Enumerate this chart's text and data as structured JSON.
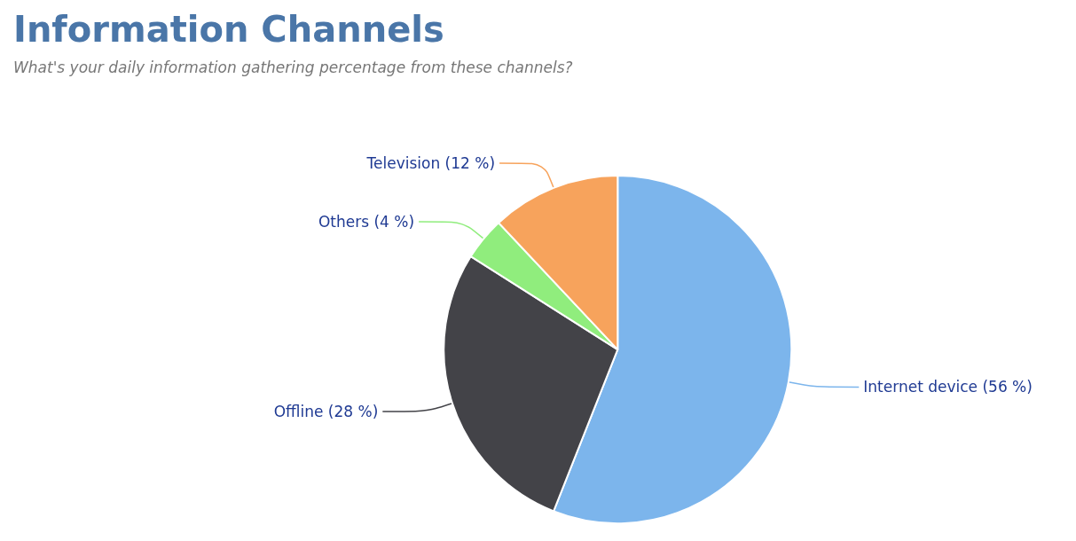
{
  "chart_data": {
    "type": "pie",
    "title": "Information Channels",
    "subtitle": "What's your daily information gathering percentage from these channels?",
    "categories": [
      "Internet device",
      "Offline",
      "Others",
      "Television"
    ],
    "values": [
      56,
      28,
      4,
      12
    ],
    "value_labels": [
      "(56 %)",
      "(28 %)",
      "(4 %)",
      "(12 %)"
    ],
    "colors": [
      "#7cb5ec",
      "#434348",
      "#90ed7d",
      "#f7a35c"
    ],
    "legend": false
  }
}
